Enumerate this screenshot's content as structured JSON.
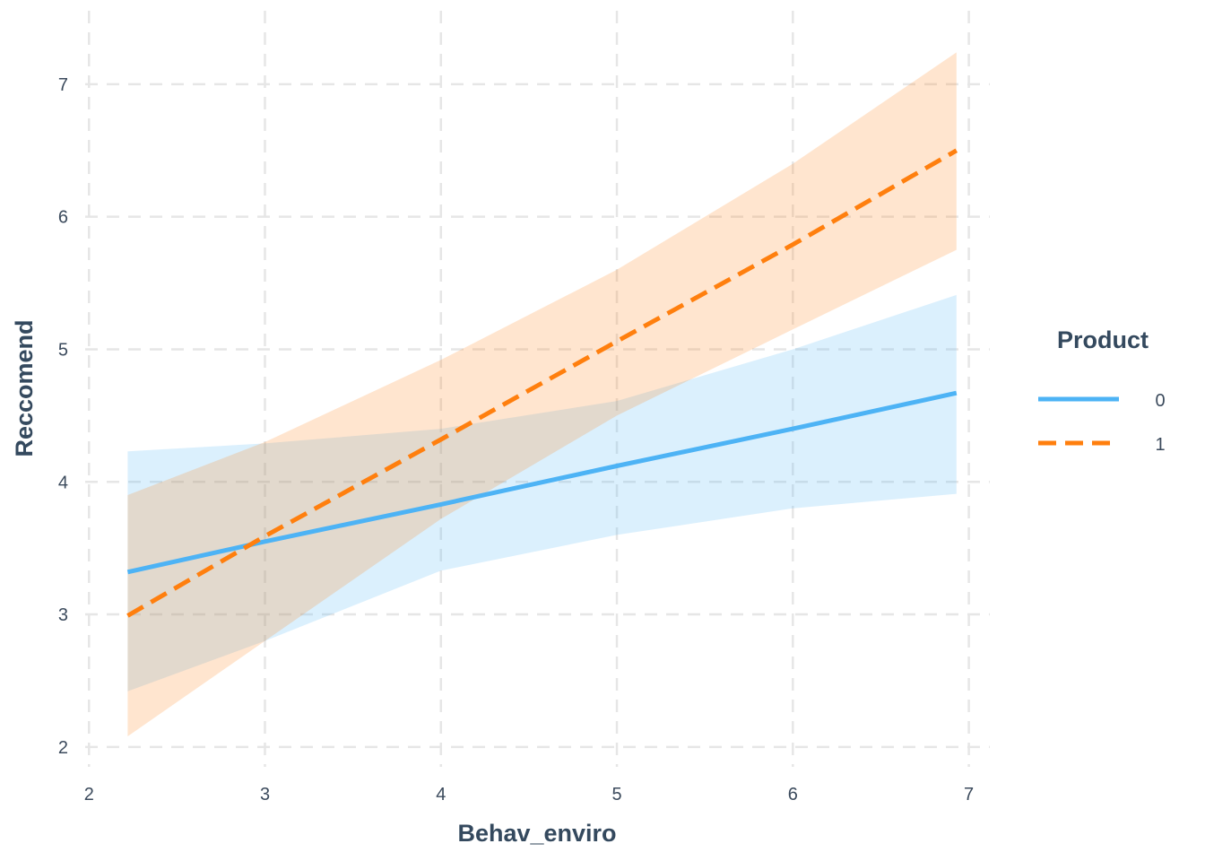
{
  "chart_data": {
    "type": "line",
    "xlabel": "Behav_enviro",
    "ylabel": "Reccomend",
    "xlim": [
      1.8,
      7.15
    ],
    "ylim": [
      1.85,
      7.5
    ],
    "x_ticks": [
      2,
      3,
      4,
      5,
      6,
      7
    ],
    "y_ticks": [
      2,
      3,
      4,
      5,
      6,
      7
    ],
    "grid": true,
    "grid_style": "dashed",
    "legend": {
      "title": "Product",
      "placement": "right"
    },
    "series": [
      {
        "name": "0",
        "color": "#4db3f5",
        "line_style": "solid",
        "x": [
          2.22,
          3,
          4,
          5,
          6,
          6.93
        ],
        "y": [
          3.32,
          3.55,
          3.83,
          4.12,
          4.4,
          4.67
        ],
        "ci_lower": [
          2.42,
          2.8,
          3.33,
          3.6,
          3.8,
          3.91
        ],
        "ci_upper": [
          4.23,
          4.29,
          4.4,
          4.61,
          5.0,
          5.41
        ]
      },
      {
        "name": "1",
        "color": "#ff7f0e",
        "line_style": "dashed",
        "x": [
          2.22,
          3,
          4,
          5,
          6,
          6.93
        ],
        "y": [
          2.99,
          3.59,
          4.32,
          5.06,
          5.79,
          6.5
        ],
        "ci_lower": [
          2.08,
          2.8,
          3.72,
          4.5,
          5.15,
          5.75
        ],
        "ci_upper": [
          3.9,
          4.3,
          4.92,
          5.6,
          6.4,
          7.24
        ]
      }
    ]
  }
}
